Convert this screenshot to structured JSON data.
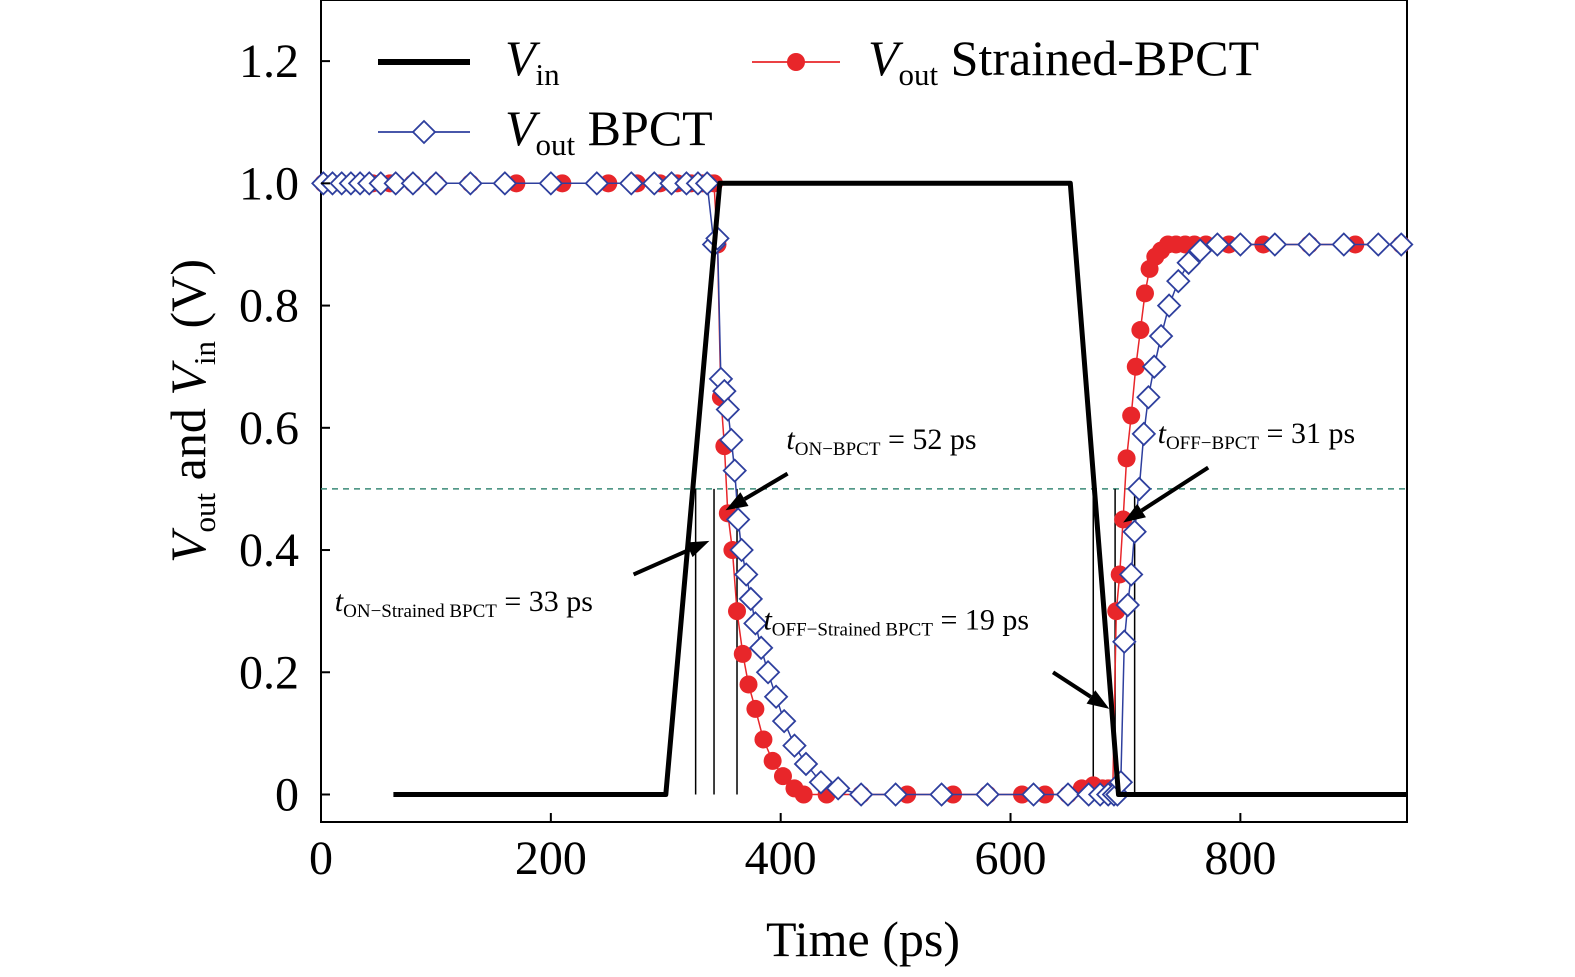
{
  "chart_data": {
    "type": "line",
    "xlabel": "Time (ps)",
    "ylabel": {
      "parts": [
        {
          "text": "V",
          "italic": true
        },
        {
          "text": "out",
          "sub": true
        },
        {
          "text": " and "
        },
        {
          "text": "V",
          "italic": true
        },
        {
          "text": "in",
          "sub": true
        },
        {
          "text": " (V)"
        }
      ]
    },
    "xlim": [
      0,
      945
    ],
    "ylim": [
      -0.045,
      1.3
    ],
    "xticks": [
      0,
      200,
      400,
      600,
      800
    ],
    "yticks": [
      0,
      0.2,
      0.4,
      0.6,
      0.8,
      1.0,
      1.2
    ],
    "ytick_labels": [
      "0",
      "0.2",
      "0.4",
      "0.6",
      "0.8",
      "1.0",
      "1.2"
    ],
    "grid": false,
    "legend_position": "top",
    "threshold_line": {
      "y": 0.5,
      "color": "#3a8a78"
    },
    "series": [
      {
        "id": "vin",
        "name": {
          "parts": [
            {
              "text": "V",
              "italic": true
            },
            {
              "text": "in",
              "sub": true
            }
          ]
        },
        "color": "#000000",
        "marker": "none",
        "x": [
          63,
          300,
          347,
          652,
          694,
          945
        ],
        "y": [
          0,
          0,
          1.0,
          1.0,
          0,
          0
        ]
      },
      {
        "id": "strained",
        "name": {
          "parts": [
            {
              "text": "V",
              "italic": true
            },
            {
              "text": "out",
              "sub": true
            },
            {
              "text": " Strained-BPCT"
            }
          ]
        },
        "color": "#e8262a",
        "marker": "circle",
        "x": [
          2,
          10,
          18,
          26,
          34,
          45,
          60,
          80,
          100,
          130,
          170,
          210,
          250,
          275,
          295,
          310,
          322,
          332,
          338,
          342,
          345,
          348,
          351,
          354,
          358,
          362,
          367,
          372,
          378,
          385,
          393,
          402,
          412,
          420,
          440,
          470,
          510,
          550,
          580,
          610,
          630,
          650,
          662,
          672,
          680,
          685,
          689,
          692,
          695,
          698,
          701,
          705,
          709,
          713,
          717,
          721,
          726,
          731,
          737,
          744,
          752,
          760,
          770,
          790,
          820,
          860,
          900,
          940
        ],
        "y": [
          1.0,
          1.0,
          1.0,
          1.0,
          1.0,
          1.0,
          1.0,
          1.0,
          1.0,
          1.0,
          1.0,
          1.0,
          1.0,
          1.0,
          1.0,
          1.0,
          1.0,
          1.0,
          1.0,
          1.0,
          0.9,
          0.65,
          0.57,
          0.46,
          0.4,
          0.3,
          0.23,
          0.18,
          0.14,
          0.09,
          0.055,
          0.03,
          0.01,
          0.0,
          0.0,
          0.0,
          0.0,
          0.0,
          0.0,
          0.0,
          0.0,
          0.0,
          0.01,
          0.015,
          0.01,
          0.01,
          0.01,
          0.3,
          0.36,
          0.45,
          0.55,
          0.62,
          0.7,
          0.76,
          0.82,
          0.86,
          0.88,
          0.89,
          0.9,
          0.9,
          0.9,
          0.9,
          0.9,
          0.9,
          0.9,
          0.9,
          0.9,
          0.9
        ]
      },
      {
        "id": "bpct",
        "name": {
          "parts": [
            {
              "text": "V",
              "italic": true
            },
            {
              "text": "out",
              "sub": true
            },
            {
              "text": " BPCT"
            }
          ]
        },
        "color": "#2e3f9e",
        "marker": "diamond",
        "x": [
          2,
          10,
          18,
          26,
          34,
          42,
          52,
          65,
          80,
          100,
          130,
          160,
          200,
          240,
          270,
          290,
          305,
          318,
          328,
          336,
          342,
          345,
          348,
          351,
          354,
          357,
          360,
          363,
          366,
          370,
          374,
          378,
          383,
          389,
          396,
          403,
          412,
          422,
          435,
          450,
          470,
          500,
          540,
          580,
          620,
          650,
          668,
          678,
          685,
          690,
          693,
          696,
          699,
          702,
          705,
          708,
          712,
          716,
          720,
          725,
          731,
          738,
          746,
          755,
          765,
          780,
          800,
          830,
          860,
          890,
          920,
          940
        ],
        "y": [
          1.0,
          1.0,
          1.0,
          1.0,
          1.0,
          1.0,
          1.0,
          1.0,
          1.0,
          1.0,
          1.0,
          1.0,
          1.0,
          1.0,
          1.0,
          1.0,
          1.0,
          1.0,
          1.0,
          1.0,
          0.9,
          0.91,
          0.68,
          0.66,
          0.63,
          0.58,
          0.53,
          0.45,
          0.4,
          0.36,
          0.32,
          0.28,
          0.24,
          0.2,
          0.16,
          0.12,
          0.08,
          0.05,
          0.02,
          0.01,
          0.0,
          0.0,
          0.0,
          0.0,
          0.0,
          0.0,
          0.0,
          0.0,
          0.0,
          0.0,
          0.0,
          0.02,
          0.25,
          0.31,
          0.36,
          0.43,
          0.5,
          0.59,
          0.65,
          0.7,
          0.75,
          0.8,
          0.84,
          0.87,
          0.89,
          0.9,
          0.9,
          0.9,
          0.9,
          0.9,
          0.9,
          0.9
        ]
      }
    ],
    "annotations": [
      {
        "id": "t-on-strained",
        "parts": [
          {
            "text": "t",
            "italic": true
          },
          {
            "text": "ON−Strained BPCT",
            "sub": true
          },
          {
            "text": " = 33 ps"
          }
        ],
        "at": [
          12,
          0.3
        ],
        "arrow_from": [
          272,
          0.36
        ],
        "arrow_to": [
          338,
          0.415
        ]
      },
      {
        "id": "t-on-bpct",
        "parts": [
          {
            "text": "t",
            "italic": true
          },
          {
            "text": "ON−BPCT",
            "sub": true
          },
          {
            "text": " = 52 ps"
          }
        ],
        "at": [
          405,
          0.565
        ],
        "arrow_from": [
          406,
          0.525
        ],
        "arrow_to": [
          352,
          0.465
        ]
      },
      {
        "id": "t-off-strained",
        "parts": [
          {
            "text": "t",
            "italic": true
          },
          {
            "text": "OFF−Strained BPCT",
            "sub": true
          },
          {
            "text": " = 19 ps"
          }
        ],
        "at": [
          385,
          0.27
        ],
        "arrow_from": [
          637,
          0.2
        ],
        "arrow_to": [
          686,
          0.14
        ]
      },
      {
        "id": "t-off-bpct",
        "parts": [
          {
            "text": "t",
            "italic": true
          },
          {
            "text": "OFF−BPCT",
            "sub": true
          },
          {
            "text": " = 31 ps"
          }
        ],
        "at": [
          728,
          0.575
        ],
        "arrow_from": [
          772,
          0.535
        ],
        "arrow_to": [
          698,
          0.445
        ]
      }
    ],
    "markers_vertical": [
      {
        "x": 326,
        "y": [
          0,
          0.5
        ]
      },
      {
        "x": 342,
        "y": [
          0,
          0.5
        ]
      },
      {
        "x": 362,
        "y": [
          0,
          0.5
        ]
      },
      {
        "x": 672,
        "y": [
          0,
          0.5
        ]
      },
      {
        "x": 691,
        "y": [
          0,
          0.5
        ]
      },
      {
        "x": 708,
        "y": [
          0,
          0.5
        ]
      }
    ]
  }
}
